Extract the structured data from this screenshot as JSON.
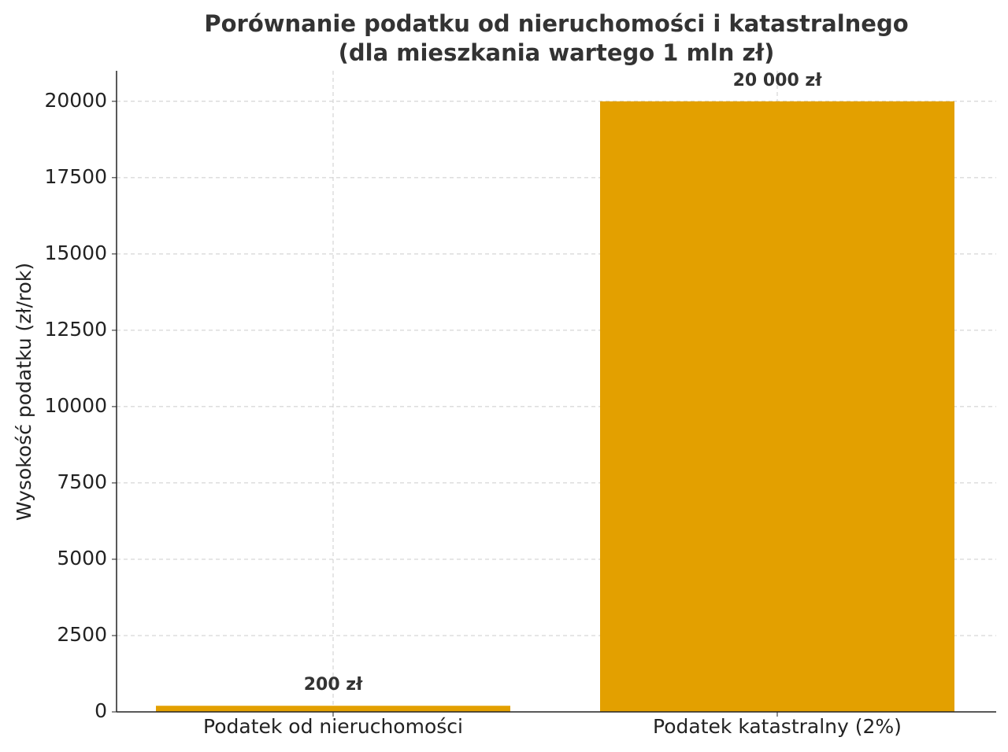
{
  "chart_data": {
    "type": "bar",
    "title": "Porównanie podatku od nieruchomości i katastralnego\n(dla mieszkania wartego 1 mln zł)",
    "ylabel": "Wysokość podatku (zł/rok)",
    "categories": [
      "Podatek od nieruchomości",
      "Podatek katastralny (2%)"
    ],
    "values": [
      200,
      20000
    ],
    "value_labels": [
      "200 zł",
      "20 000 zł"
    ],
    "color": "#e3a000",
    "ylim": [
      0,
      21000
    ],
    "yticks": [
      0,
      2500,
      5000,
      7500,
      10000,
      12500,
      15000,
      17500,
      20000
    ],
    "grid": true
  }
}
